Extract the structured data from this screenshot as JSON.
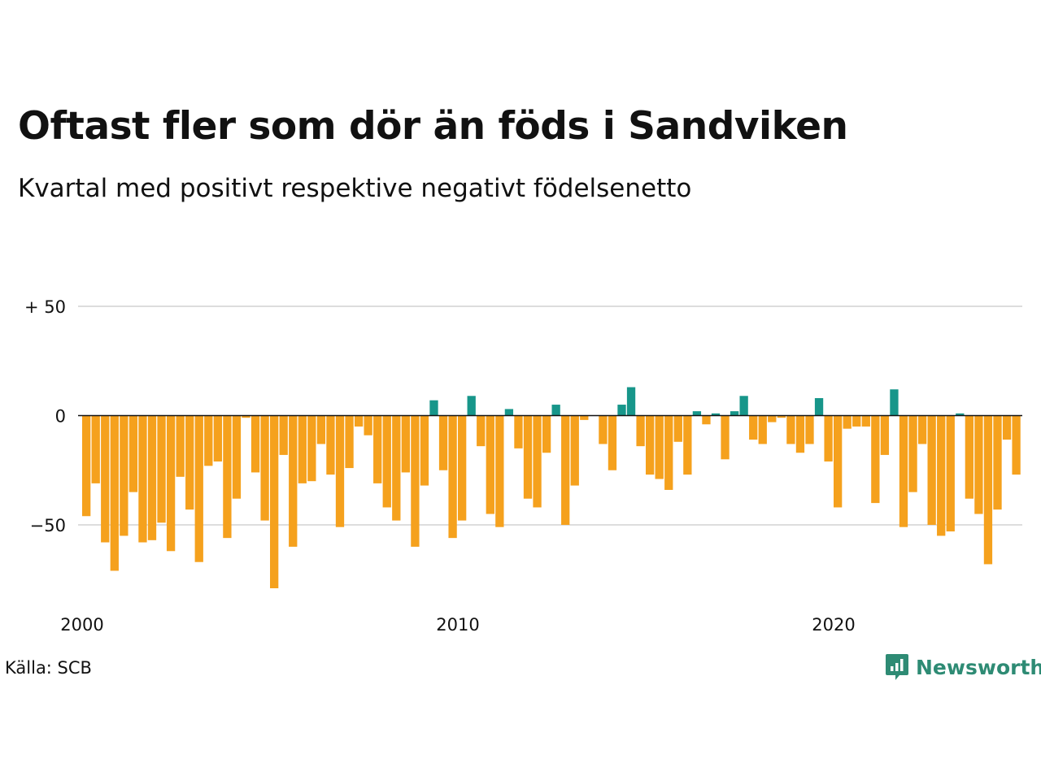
{
  "title": "Oftast fler som dör än föds i Sandviken",
  "subtitle": "Kvartal med positivt respektive negativt födelsenetto",
  "source": "Källa: SCB",
  "brand": "Newsworthy",
  "colors": {
    "positive": "#17968a",
    "negative": "#f5a11d",
    "grid": "#dddddd",
    "zero": "#111111",
    "brand": "#2e8b74"
  },
  "chart_data": {
    "type": "bar",
    "start_year": 2000,
    "x_ticks": [
      2000,
      2010,
      2020
    ],
    "y_ticks": [
      50,
      0,
      -50
    ],
    "y_tick_labels": [
      "+ 50",
      "0",
      "−50"
    ],
    "ylim": [
      -80,
      50
    ],
    "values": [
      -46,
      -31,
      -58,
      -71,
      -55,
      -35,
      -58,
      -57,
      -49,
      -62,
      -28,
      -43,
      -67,
      -23,
      -21,
      -56,
      -38,
      -1,
      -26,
      -48,
      -79,
      -18,
      -60,
      -31,
      -30,
      -13,
      -27,
      -51,
      -24,
      -5,
      -9,
      -31,
      -42,
      -48,
      -26,
      -60,
      -32,
      7,
      -25,
      -56,
      -48,
      9,
      -14,
      -45,
      -51,
      3,
      -15,
      -38,
      -42,
      -17,
      5,
      -50,
      -32,
      -2,
      0,
      -13,
      -25,
      5,
      13,
      -14,
      -27,
      -29,
      -34,
      -12,
      -27,
      2,
      -4,
      1,
      -20,
      2,
      9,
      -11,
      -13,
      -3,
      -1,
      -13,
      -17,
      -13,
      8,
      -21,
      -42,
      -6,
      -5,
      -5,
      -40,
      -18,
      12,
      -51,
      -35,
      -13,
      -50,
      -55,
      -53,
      1,
      -38,
      -45,
      -68,
      -43,
      -11,
      -27
    ]
  }
}
